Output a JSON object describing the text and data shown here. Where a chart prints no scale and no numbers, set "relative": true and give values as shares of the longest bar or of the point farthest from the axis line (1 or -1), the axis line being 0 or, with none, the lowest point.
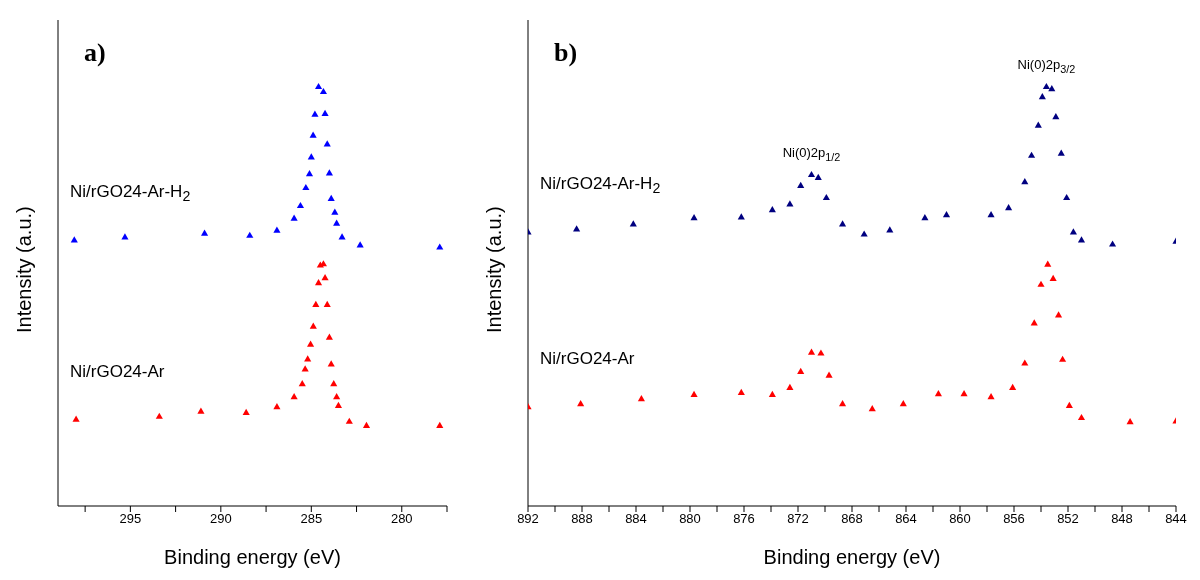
{
  "chart_data": [
    {
      "type": "scatter",
      "title": "a)",
      "xlabel": "Binding energy (eV)",
      "ylabel": "Intensity (a.u.)",
      "relative": true,
      "marker": "triangle",
      "xlim": [
        299,
        277.5
      ],
      "xticks": [
        {
          "value": 297.5,
          "label": null
        },
        295,
        {
          "value": 292.5,
          "label": null
        },
        290,
        {
          "value": 287.5,
          "label": null
        },
        285,
        {
          "value": 282.5,
          "label": null
        },
        280,
        {
          "value": 277.5,
          "label": null
        }
      ],
      "series": [
        {
          "name": "Ni/rGO24-Ar-H$_{2}$",
          "color": "#0000ff",
          "x": [
            298.1,
            295.3,
            290.9,
            288.4,
            286.9,
            285.95,
            285.6,
            285.3,
            285.1,
            285.0,
            284.9,
            284.8,
            284.6,
            284.33,
            284.24,
            284.12,
            284.0,
            283.9,
            283.7,
            283.6,
            283.3,
            282.3,
            277.9
          ],
          "values": [
            0.634,
            0.641,
            0.65,
            0.645,
            0.657,
            0.686,
            0.716,
            0.759,
            0.792,
            0.832,
            0.884,
            0.934,
            1.0,
            0.988,
            0.936,
            0.863,
            0.794,
            0.733,
            0.7,
            0.674,
            0.641,
            0.622,
            0.617
          ]
        },
        {
          "name": "Ni/rGO24-Ar",
          "color": "#ff0000",
          "x": [
            298.0,
            293.4,
            291.1,
            288.6,
            286.9,
            285.95,
            285.5,
            285.34,
            285.2,
            285.04,
            284.89,
            284.75,
            284.6,
            284.5,
            284.33,
            284.24,
            284.12,
            284.0,
            283.9,
            283.76,
            283.6,
            283.5,
            282.9,
            281.95,
            277.9
          ],
          "values": [
            0.206,
            0.213,
            0.225,
            0.222,
            0.236,
            0.26,
            0.291,
            0.326,
            0.35,
            0.385,
            0.428,
            0.48,
            0.532,
            0.574,
            0.577,
            0.544,
            0.48,
            0.402,
            0.338,
            0.291,
            0.26,
            0.239,
            0.201,
            0.191,
            0.191
          ]
        }
      ]
    },
    {
      "type": "scatter",
      "title": "b)",
      "xlabel": "Binding energy (eV)",
      "ylabel": "Intensity (a.u.)",
      "relative": true,
      "marker": "triangle",
      "xlim": [
        892,
        844
      ],
      "xticks": [
        892,
        {
          "value": 890,
          "label": null
        },
        888,
        {
          "value": 886,
          "label": null
        },
        884,
        {
          "value": 882,
          "label": null
        },
        880,
        {
          "value": 878,
          "label": null
        },
        876,
        {
          "value": 874,
          "label": null
        },
        872,
        {
          "value": 870,
          "label": null
        },
        868,
        {
          "value": 866,
          "label": null
        },
        864,
        {
          "value": 862,
          "label": null
        },
        860,
        {
          "value": 858,
          "label": null
        },
        856,
        {
          "value": 854,
          "label": null
        },
        852,
        {
          "value": 850,
          "label": null
        },
        848,
        {
          "value": 846,
          "label": null
        },
        844
      ],
      "annotations": [
        "Ni(0)2p$_{1/2}$",
        "Ni(0)2p$_{3/2}$"
      ],
      "series": [
        {
          "name": "Ni/rGO24-Ar-H$_{2}$",
          "color": "#000080",
          "x": [
            892,
            888.4,
            884.2,
            879.7,
            876.2,
            873.9,
            872.6,
            871.8,
            871.0,
            870.5,
            869.9,
            868.7,
            867.1,
            865.2,
            862.6,
            861.0,
            857.7,
            856.4,
            855.2,
            854.7,
            854.2,
            853.9,
            853.6,
            853.2,
            852.9,
            852.5,
            852.1,
            851.6,
            851.0,
            848.7,
            844
          ],
          "values": [
            0.653,
            0.66,
            0.672,
            0.687,
            0.689,
            0.706,
            0.72,
            0.764,
            0.79,
            0.783,
            0.735,
            0.672,
            0.648,
            0.658,
            0.687,
            0.694,
            0.694,
            0.711,
            0.773,
            0.836,
            0.908,
            0.976,
            1.0,
            0.995,
            0.928,
            0.841,
            0.735,
            0.653,
            0.634,
            0.624,
            0.631
          ]
        },
        {
          "name": "Ni/rGO24-Ar",
          "color": "#ff0000",
          "x": [
            892,
            888.1,
            883.6,
            879.7,
            876.2,
            873.9,
            872.6,
            871.8,
            871.0,
            870.3,
            869.7,
            868.7,
            866.5,
            864.2,
            861.6,
            859.7,
            857.7,
            856.1,
            855.2,
            854.5,
            854.0,
            853.5,
            853.1,
            852.7,
            852.4,
            851.9,
            851.0,
            847.4,
            844
          ],
          "values": [
            0.236,
            0.243,
            0.255,
            0.265,
            0.27,
            0.265,
            0.282,
            0.32,
            0.366,
            0.364,
            0.311,
            0.243,
            0.231,
            0.243,
            0.267,
            0.267,
            0.26,
            0.282,
            0.34,
            0.436,
            0.528,
            0.576,
            0.542,
            0.455,
            0.349,
            0.239,
            0.21,
            0.2,
            0.202
          ]
        }
      ]
    }
  ]
}
